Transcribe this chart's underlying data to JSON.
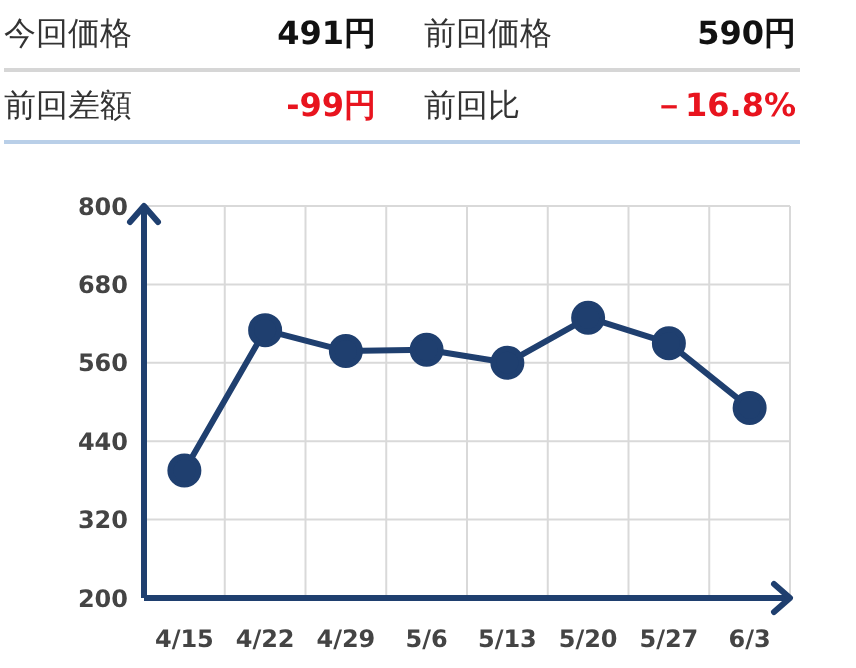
{
  "chart_data": {
    "type": "line",
    "annotations": [
      "今回価格",
      "491円",
      "前回価格",
      "590円",
      "前回差額",
      "-99円",
      "前回比",
      "－16.8%"
    ],
    "categories": [
      "4/15",
      "4/22",
      "4/29",
      "5/6",
      "5/13",
      "5/20",
      "5/27",
      "6/3"
    ],
    "series": [
      {
        "color": "#1f3f6f",
        "values": [
          395,
          610,
          578,
          580,
          560,
          629,
          590,
          491
        ]
      }
    ],
    "ylim": [
      200,
      800
    ],
    "yticks": [
      200,
      320,
      440,
      560,
      680,
      800
    ],
    "grid": true,
    "marker": "circle",
    "line_style": "solid",
    "legend": false
  }
}
